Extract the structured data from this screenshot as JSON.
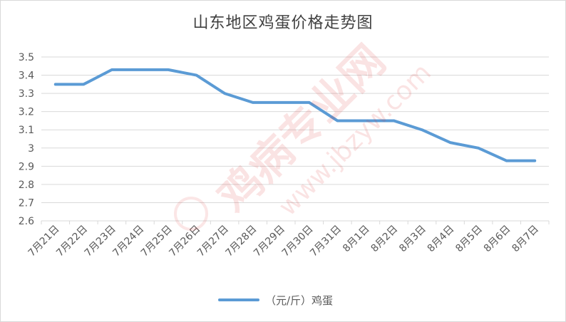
{
  "chart_data": {
    "type": "line",
    "title": "山东地区鸡蛋价格走势图",
    "categories": [
      "7月21日",
      "7月22日",
      "7月23日",
      "7月24日",
      "7月25日",
      "7月26日",
      "7月27日",
      "7月28日",
      "7月29日",
      "7月30日",
      "7月31日",
      "8月1日",
      "8月2日",
      "8月3日",
      "8月4日",
      "8月5日",
      "8月6日",
      "8月7日"
    ],
    "series": [
      {
        "name": "（元/斤）鸡蛋",
        "values": [
          3.35,
          3.35,
          3.43,
          3.43,
          3.43,
          3.4,
          3.3,
          3.25,
          3.25,
          3.25,
          3.15,
          3.15,
          3.15,
          3.1,
          3.03,
          3.0,
          2.93,
          2.93
        ]
      }
    ],
    "ylim": [
      2.6,
      3.5
    ],
    "yticks": [
      "2.6",
      "2.7",
      "2.8",
      "2.9",
      "3",
      "3.1",
      "3.2",
      "3.3",
      "3.4",
      "3.5"
    ],
    "xlabel": "",
    "ylabel": "",
    "grid": true,
    "legend": "bottom",
    "line_color": "#5b9bd5"
  },
  "watermark": {
    "text": "鸡病专业网",
    "url": "www.jbzyw.com"
  }
}
